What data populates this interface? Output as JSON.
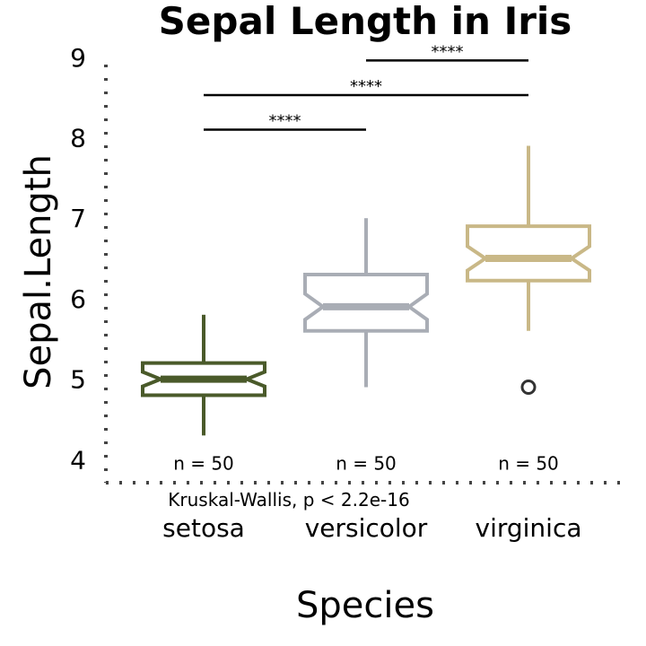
{
  "chart_data": {
    "type": "box",
    "title": "Sepal Length in Iris",
    "xlabel": "Species",
    "ylabel": "Sepal.Length",
    "ylim": [
      3.2,
      9.6
    ],
    "yticks": [
      4,
      5,
      6,
      7,
      8,
      9
    ],
    "ytick_labels": [
      "4",
      "5",
      "6",
      "7",
      "8",
      "9"
    ],
    "grid": false,
    "notched": true,
    "categories": [
      "setosa",
      "versicolor",
      "virginica"
    ],
    "colors": [
      "#4a5a2a",
      "#a9adb5",
      "#c9b887"
    ],
    "outlier_color": "#333333",
    "boxes": [
      {
        "name": "setosa",
        "min": 4.3,
        "q1": 4.8,
        "median": 5.0,
        "q3": 5.2,
        "max": 5.8,
        "notch_low": 4.91,
        "notch_high": 5.09,
        "outliers": []
      },
      {
        "name": "versicolor",
        "min": 4.9,
        "q1": 5.6,
        "median": 5.9,
        "q3": 6.3,
        "max": 7.0,
        "notch_low": 5.74,
        "notch_high": 6.06,
        "outliers": []
      },
      {
        "name": "virginica",
        "min": 5.6,
        "q1": 6.225,
        "median": 6.5,
        "q3": 6.9,
        "max": 7.9,
        "notch_low": 6.35,
        "notch_high": 6.65,
        "outliers": [
          4.9
        ]
      }
    ],
    "n_labels": [
      "n = 50",
      "n = 50",
      "n = 50"
    ],
    "n_label_y": 3.95,
    "test_label": "Kruskal-Wallis, p < 2.2e-16",
    "test_label_y": 3.5,
    "comparisons": [
      {
        "from": 0,
        "to": 1,
        "y": 8.1,
        "label": "****"
      },
      {
        "from": 0,
        "to": 2,
        "y": 8.53,
        "label": "****"
      },
      {
        "from": 1,
        "to": 2,
        "y": 8.96,
        "label": "****"
      }
    ]
  }
}
